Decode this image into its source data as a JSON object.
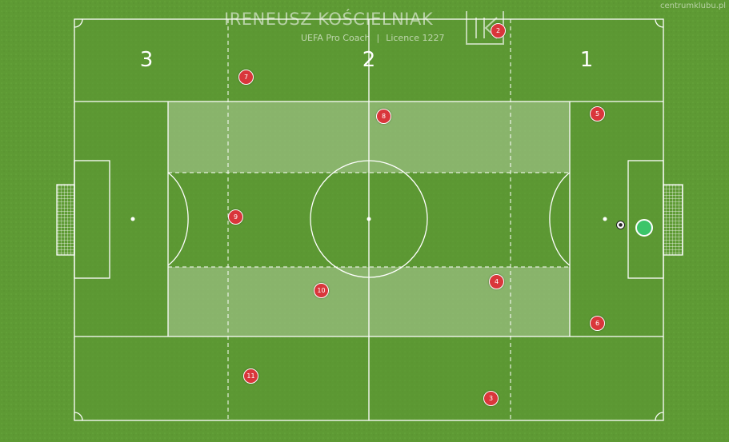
{
  "header": {
    "title": "IRENEUSZ KOŚCIELNIAK",
    "role": "UEFA Pro Coach",
    "separator": "|",
    "licence": "Licence 1227",
    "logo_name": "ik-monogram-logo"
  },
  "watermark": "centrumklubu.pl",
  "zones": [
    {
      "label": "3"
    },
    {
      "label": "2"
    },
    {
      "label": "1"
    }
  ],
  "players": [
    {
      "number": "2"
    },
    {
      "number": "7"
    },
    {
      "number": "8"
    },
    {
      "number": "5"
    },
    {
      "number": "9"
    },
    {
      "number": "10"
    },
    {
      "number": "4"
    },
    {
      "number": "6"
    },
    {
      "number": "11"
    },
    {
      "number": "3"
    }
  ],
  "colors": {
    "pitch_light": "#6aa83c",
    "pitch_dark": "#5a9531",
    "lines": "#ffffff",
    "player_fill": "#d9363b",
    "goalkeeper_fill": "#3cc56a",
    "channel_highlight": "#ffffff"
  }
}
